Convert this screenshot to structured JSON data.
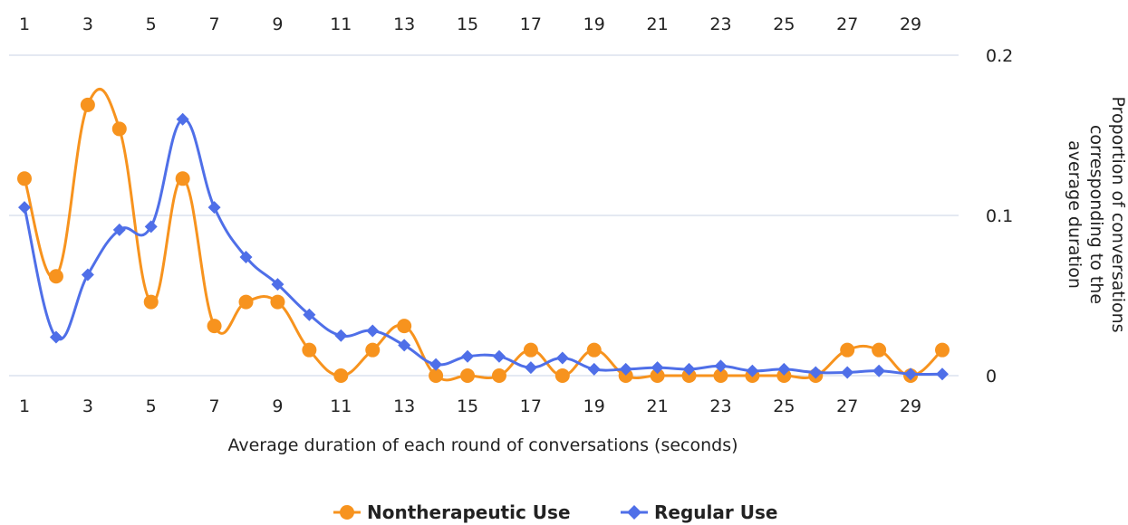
{
  "chart_data": {
    "type": "line",
    "title": "",
    "xlabel": "Average duration of each round of conversations (seconds)",
    "ylabel": "Proportion of conversations corresponding to the average duration",
    "ylabel_lines": [
      "Proportion of conversations",
      "corresponding to the",
      "average duration"
    ],
    "x": [
      1,
      2,
      3,
      4,
      5,
      6,
      7,
      8,
      9,
      10,
      11,
      12,
      13,
      14,
      15,
      16,
      17,
      18,
      19,
      20,
      21,
      22,
      23,
      24,
      25,
      26,
      27,
      28,
      29,
      30
    ],
    "x_tick_labels": [
      "1",
      "3",
      "5",
      "7",
      "9",
      "11",
      "13",
      "15",
      "17",
      "19",
      "21",
      "23",
      "25",
      "27",
      "29"
    ],
    "y_tick_labels": [
      "0",
      "0.1",
      "0.2"
    ],
    "xlim": [
      1,
      30
    ],
    "ylim": [
      0,
      0.2
    ],
    "grid": true,
    "smooth": true,
    "series": [
      {
        "name": "Nontherapeutic Use",
        "color": "#F7931E",
        "marker": "circle",
        "values": [
          0.123,
          0.062,
          0.169,
          0.154,
          0.046,
          0.123,
          0.031,
          0.046,
          0.046,
          0.016,
          0,
          0.016,
          0.031,
          0,
          0,
          0,
          0.016,
          0,
          0.016,
          0,
          0,
          0,
          0,
          0,
          0,
          0,
          0.016,
          0.016,
          0,
          0.016
        ]
      },
      {
        "name": "Regular Use",
        "color": "#4F6FE8",
        "marker": "diamond",
        "values": [
          0.105,
          0.024,
          0.063,
          0.091,
          0.093,
          0.16,
          0.105,
          0.074,
          0.057,
          0.038,
          0.025,
          0.028,
          0.019,
          0.007,
          0.012,
          0.012,
          0.005,
          0.011,
          0.004,
          0.004,
          0.005,
          0.004,
          0.006,
          0.003,
          0.004,
          0.002,
          0.002,
          0.003,
          0.001,
          0.001
        ]
      }
    ],
    "legend": {
      "position": "bottom-center"
    }
  }
}
